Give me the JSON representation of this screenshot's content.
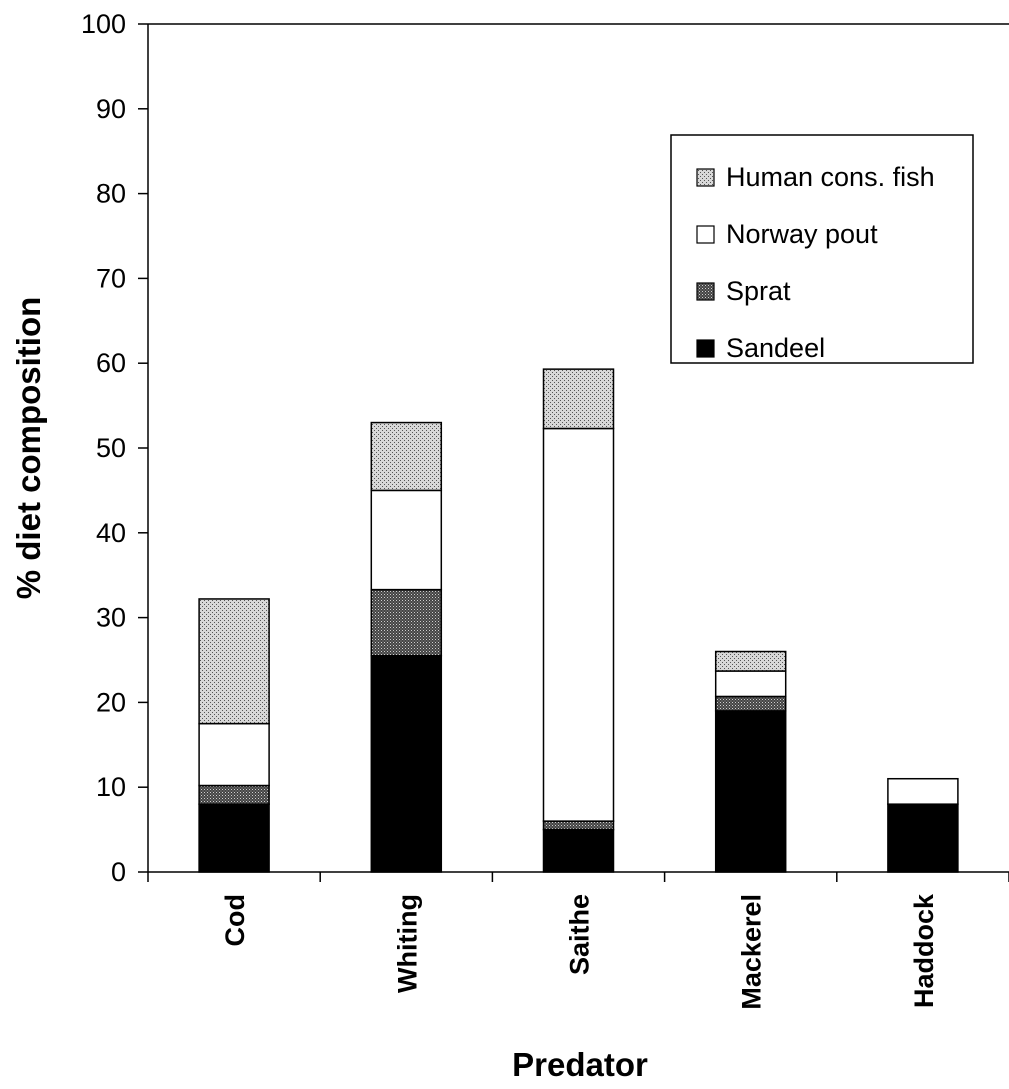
{
  "chart_data": {
    "type": "bar",
    "stacked": true,
    "title": "",
    "xlabel": "Predator",
    "ylabel": "% diet composition",
    "ylim": [
      0,
      100
    ],
    "yticks": [
      0,
      10,
      20,
      30,
      40,
      50,
      60,
      70,
      80,
      90,
      100
    ],
    "grid": false,
    "legend_position": "top-right",
    "categories": [
      "Cod",
      "Whiting",
      "Saithe",
      "Mackerel",
      "Haddock"
    ],
    "series": [
      {
        "name": "Sandeel",
        "values": [
          8,
          25.5,
          5,
          19,
          8
        ],
        "fill": "solid-black"
      },
      {
        "name": "Sprat",
        "values": [
          2.2,
          7.8,
          1,
          1.7,
          0
        ],
        "fill": "dark-stipple"
      },
      {
        "name": "Norway pout",
        "values": [
          7.3,
          11.7,
          46.3,
          3,
          3
        ],
        "fill": "white"
      },
      {
        "name": "Human cons. fish",
        "values": [
          14.7,
          8,
          7,
          2.3,
          0
        ],
        "fill": "light-stipple"
      }
    ],
    "legend_order": [
      "Human cons. fish",
      "Norway pout",
      "Sprat",
      "Sandeel"
    ]
  }
}
